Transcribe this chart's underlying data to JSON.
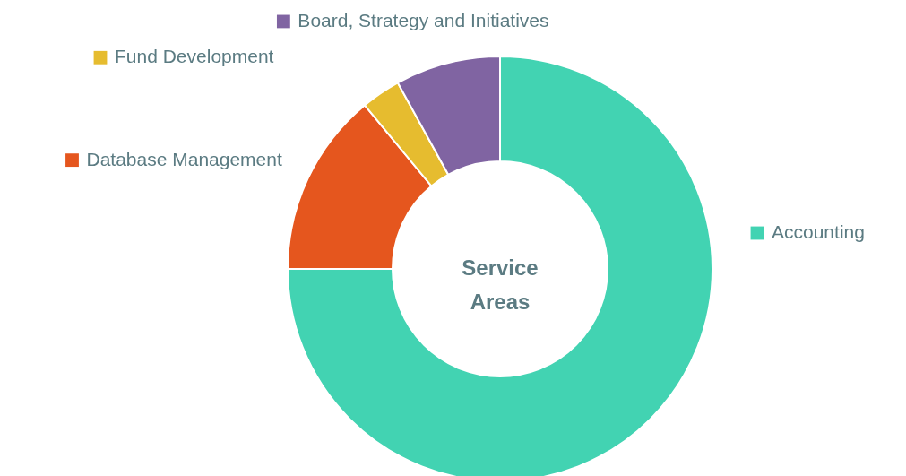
{
  "chart_data": {
    "type": "donut",
    "title": "Service Areas",
    "categories": [
      "Accounting",
      "Database Management",
      "Fund Development",
      "Board, Strategy and Initiatives"
    ],
    "values": [
      75,
      14,
      3,
      8
    ],
    "colors": [
      "#42d3b2",
      "#e5561e",
      "#e6bc2f",
      "#8064a2"
    ],
    "legend": "top"
  }
}
